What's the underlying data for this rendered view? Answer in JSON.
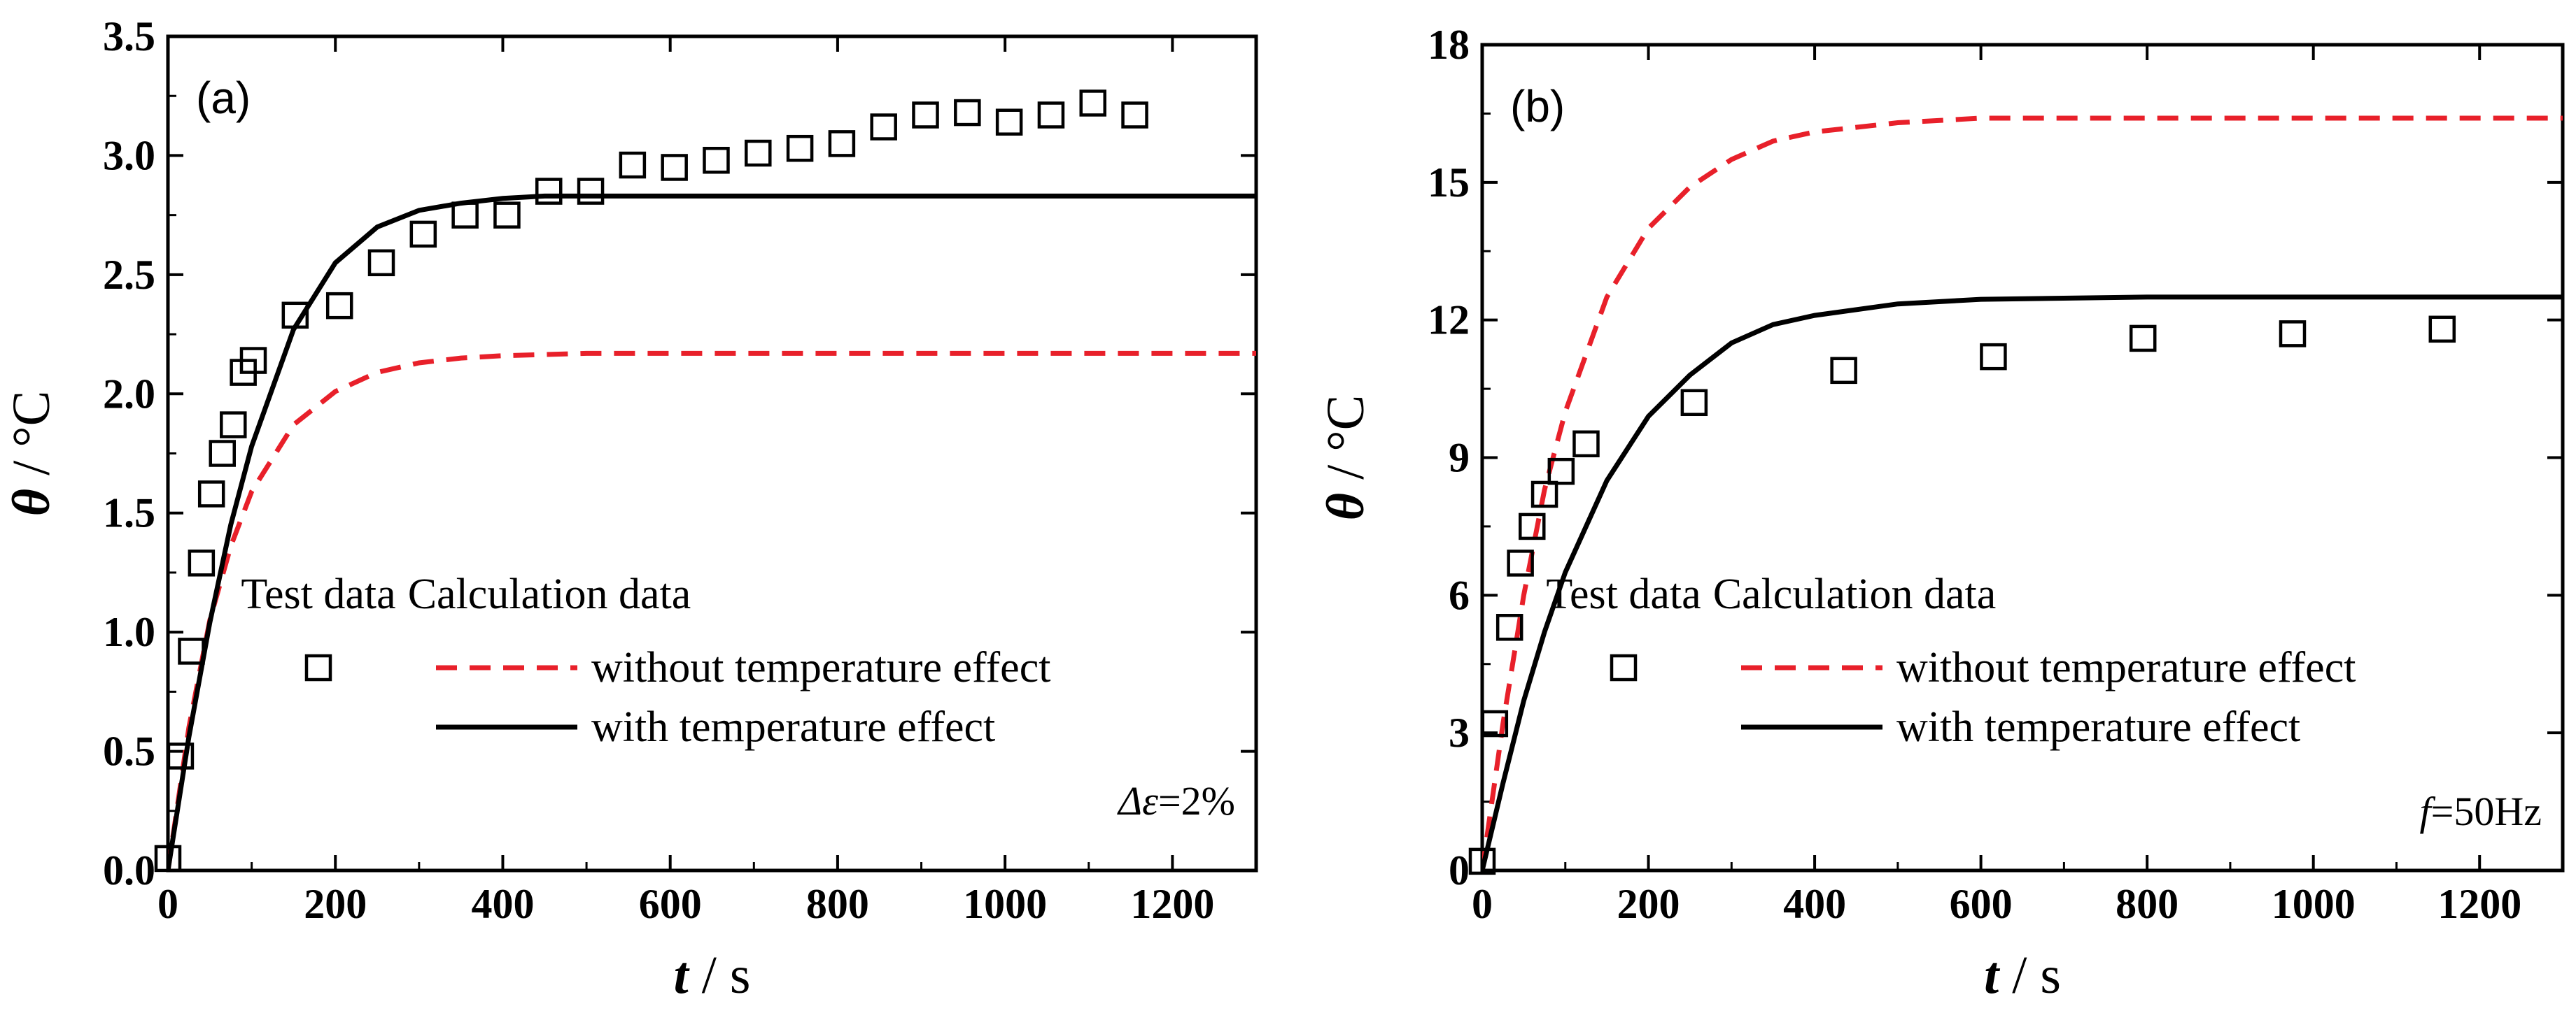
{
  "colors": {
    "with_line": "#000000",
    "without_line": "#e8202a",
    "marker_stroke": "#000000"
  },
  "chart_data": [
    {
      "type": "scatter+line",
      "panel_label": "(a)",
      "xlabel_var": "t",
      "xlabel_unit": " / s",
      "ylabel_var": "θ",
      "ylabel_unit": " / °C",
      "xlim": [
        0,
        1300
      ],
      "ylim": [
        0,
        3.5
      ],
      "xticks": [
        0,
        200,
        400,
        600,
        800,
        1000,
        1200
      ],
      "yticks": [
        0.0,
        0.5,
        1.0,
        1.5,
        2.0,
        2.5,
        3.0,
        3.5
      ],
      "xtick_labels": [
        "0",
        "200",
        "400",
        "600",
        "800",
        "1000",
        "1200"
      ],
      "ytick_labels": [
        "0.0",
        "0.5",
        "1.0",
        "1.5",
        "2.0",
        "2.5",
        "3.0",
        "3.5"
      ],
      "annotation_var": "Δε",
      "annotation_value": "=2%",
      "legend": {
        "test_title": "Test data",
        "calc_title": "Calculation data",
        "without_label": "without temperature effect",
        "with_label": "with temperature effect"
      },
      "test_data": {
        "x": [
          0,
          15,
          28,
          40,
          52,
          65,
          78,
          90,
          102,
          152,
          205,
          255,
          305,
          355,
          405,
          455,
          505,
          555,
          605,
          655,
          705,
          755,
          805,
          855,
          905,
          955,
          1005,
          1055,
          1105,
          1155
        ],
        "y": [
          0.05,
          0.48,
          0.92,
          1.29,
          1.58,
          1.75,
          1.87,
          2.09,
          2.14,
          2.33,
          2.37,
          2.55,
          2.67,
          2.75,
          2.75,
          2.85,
          2.85,
          2.96,
          2.95,
          2.98,
          3.01,
          3.03,
          3.05,
          3.12,
          3.17,
          3.18,
          3.14,
          3.17,
          3.22,
          3.17
        ]
      },
      "with_curve": {
        "x": [
          0,
          25,
          50,
          75,
          100,
          150,
          200,
          250,
          300,
          350,
          400,
          450,
          500,
          600,
          700,
          800,
          1000,
          1300
        ],
        "y": [
          0.0,
          0.56,
          1.04,
          1.45,
          1.78,
          2.27,
          2.55,
          2.7,
          2.77,
          2.8,
          2.82,
          2.83,
          2.83,
          2.83,
          2.83,
          2.83,
          2.83,
          2.83
        ]
      },
      "without_curve": {
        "x": [
          0,
          25,
          50,
          75,
          100,
          150,
          200,
          250,
          300,
          350,
          400,
          500,
          600,
          800,
          1000,
          1300
        ],
        "y": [
          0.0,
          0.6,
          1.05,
          1.36,
          1.59,
          1.87,
          2.01,
          2.09,
          2.13,
          2.15,
          2.16,
          2.17,
          2.17,
          2.17,
          2.17,
          2.17
        ]
      }
    },
    {
      "type": "scatter+line",
      "panel_label": "(b)",
      "xlabel_var": "t",
      "xlabel_unit": " / s",
      "ylabel_var": "θ",
      "ylabel_unit": " / °C",
      "xlim": [
        0,
        1300
      ],
      "ylim": [
        0,
        18
      ],
      "xticks": [
        0,
        200,
        400,
        600,
        800,
        1000,
        1200
      ],
      "yticks": [
        0,
        3,
        6,
        9,
        12,
        15,
        18
      ],
      "xtick_labels": [
        "0",
        "200",
        "400",
        "600",
        "800",
        "1000",
        "1200"
      ],
      "ytick_labels": [
        "0",
        "3",
        "6",
        "9",
        "12",
        "15",
        "18"
      ],
      "annotation_var": "f",
      "annotation_value": "=50Hz",
      "legend": {
        "test_title": "Test data",
        "calc_title": "Calculation data",
        "without_label": "without temperature effect",
        "with_label": "with temperature effect"
      },
      "test_data": {
        "x": [
          0,
          15,
          33,
          46,
          60,
          75,
          95,
          125,
          255,
          435,
          615,
          795,
          975,
          1155
        ],
        "y": [
          0.2,
          3.2,
          5.3,
          6.7,
          7.5,
          8.2,
          8.7,
          9.3,
          10.2,
          10.9,
          11.2,
          11.6,
          11.7,
          11.8
        ]
      },
      "with_curve": {
        "x": [
          0,
          25,
          50,
          75,
          100,
          150,
          200,
          250,
          300,
          350,
          400,
          500,
          600,
          800,
          1000,
          1300
        ],
        "y": [
          0.0,
          1.9,
          3.7,
          5.2,
          6.5,
          8.5,
          9.9,
          10.8,
          11.5,
          11.9,
          12.1,
          12.35,
          12.45,
          12.5,
          12.5,
          12.5
        ]
      },
      "without_curve": {
        "x": [
          0,
          25,
          50,
          75,
          100,
          150,
          200,
          250,
          300,
          350,
          400,
          500,
          600,
          800,
          1000,
          1300
        ],
        "y": [
          0.0,
          3.2,
          6.0,
          8.3,
          10.0,
          12.5,
          14.0,
          14.9,
          15.5,
          15.9,
          16.1,
          16.3,
          16.4,
          16.4,
          16.4,
          16.4
        ]
      }
    }
  ]
}
